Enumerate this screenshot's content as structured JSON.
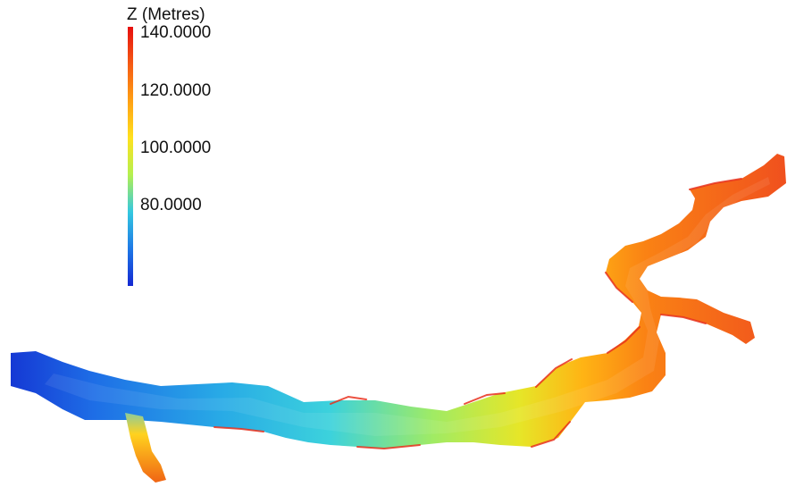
{
  "legend": {
    "title": "Z (Metres)",
    "ticks": [
      {
        "value": 140,
        "label": "140.0000"
      },
      {
        "value": 120,
        "label": "120.0000"
      },
      {
        "value": 100,
        "label": "100.0000"
      },
      {
        "value": 80,
        "label": "80.0000"
      }
    ],
    "range": [
      52,
      140
    ],
    "colormap": [
      "#1428d2",
      "#1e78e6",
      "#34c8e0",
      "#b4f050",
      "#ffe11e",
      "#ffa014",
      "#f55a14",
      "#e60f0f"
    ]
  },
  "map": {
    "description_colors": {
      "low": "#1441d2",
      "mid": "#3cd2dc",
      "high": "#f0501e"
    }
  }
}
